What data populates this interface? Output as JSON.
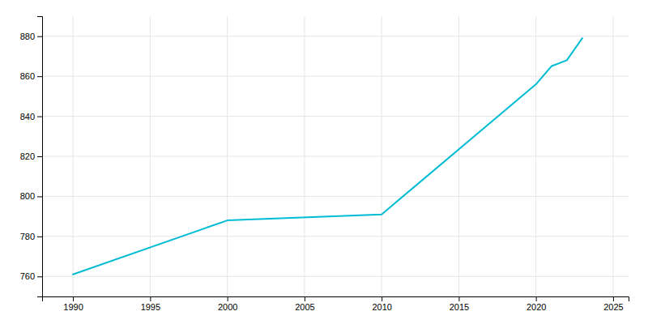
{
  "chart_data": {
    "type": "line",
    "x": [
      1990,
      2000,
      2010,
      2020,
      2021,
      2022,
      2023
    ],
    "values": [
      761,
      788,
      791,
      856,
      865,
      868,
      879
    ],
    "color": "#00bcd4",
    "xlim": [
      1988,
      2026
    ],
    "ylim": [
      750,
      890
    ],
    "xticks": [
      1990,
      1995,
      2000,
      2005,
      2010,
      2015,
      2020,
      2025
    ],
    "yticks": [
      760,
      780,
      800,
      820,
      840,
      860,
      880
    ],
    "grid": true
  }
}
